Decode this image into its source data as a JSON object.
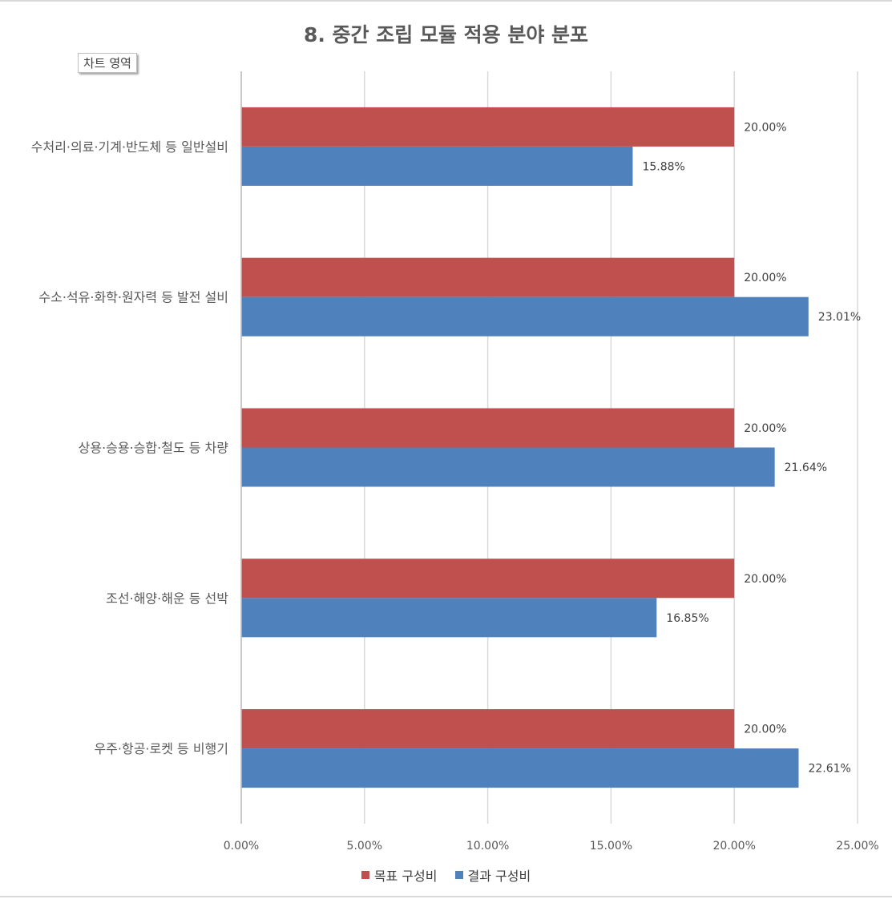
{
  "chart_area_label": "차트 영역",
  "chart_data": {
    "type": "bar",
    "orientation": "horizontal",
    "title": "8. 중간 조립 모듈 적용 분야 분포",
    "xlabel": "",
    "ylabel": "",
    "categories": [
      "수처리·의료·기계·반도체 등 일반설비",
      "수소·석유·화학·원자력 등 발전 설비",
      "상용·승용·승합·철도 등 차량",
      "조선·해양·해운 등 선박",
      "우주·항공·로켓 등 비행기"
    ],
    "series": [
      {
        "name": "목표 구성비",
        "color": "#c0504d",
        "values": [
          20.0,
          20.0,
          20.0,
          20.0,
          20.0
        ],
        "labels": [
          "20.00%",
          "20.00%",
          "20.00%",
          "20.00%",
          "20.00%"
        ]
      },
      {
        "name": "결과 구성비",
        "color": "#4f81bd",
        "values": [
          15.88,
          23.01,
          21.64,
          16.85,
          22.61
        ],
        "labels": [
          "15.88%",
          "23.01%",
          "21.64%",
          "16.85%",
          "22.61%"
        ]
      }
    ],
    "xlim": [
      0,
      25
    ],
    "xticks": [
      0,
      5,
      10,
      15,
      20,
      25
    ],
    "xtick_labels": [
      "0.00%",
      "5.00%",
      "10.00%",
      "15.00%",
      "20.00%",
      "25.00%"
    ],
    "grid": true,
    "legend_position": "bottom"
  }
}
